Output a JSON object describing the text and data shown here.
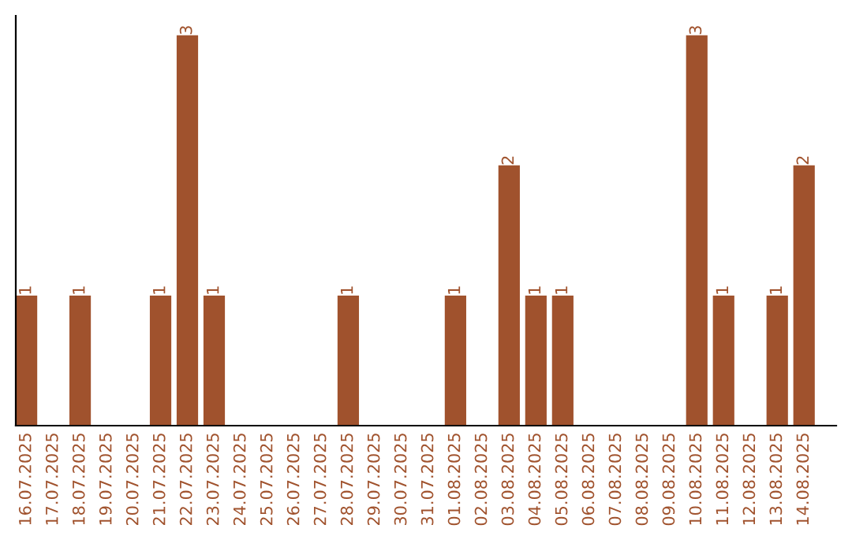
{
  "chart_data": {
    "type": "bar",
    "categories": [
      "16.07.2025",
      "17.07.2025",
      "18.07.2025",
      "19.07.2025",
      "20.07.2025",
      "21.07.2025",
      "22.07.2025",
      "23.07.2025",
      "24.07.2025",
      "25.07.2025",
      "26.07.2025",
      "27.07.2025",
      "28.07.2025",
      "29.07.2025",
      "30.07.2025",
      "31.07.2025",
      "01.08.2025",
      "02.08.2025",
      "03.08.2025",
      "04.08.2025",
      "05.08.2025",
      "06.08.2025",
      "07.08.2025",
      "08.08.2025",
      "09.08.2025",
      "10.08.2025",
      "11.08.2025",
      "12.08.2025",
      "13.08.2025",
      "14.08.2025"
    ],
    "values": [
      1,
      0,
      1,
      0,
      0,
      1,
      3,
      1,
      0,
      0,
      0,
      0,
      1,
      0,
      0,
      0,
      1,
      0,
      2,
      1,
      1,
      0,
      0,
      0,
      0,
      3,
      1,
      0,
      1,
      2
    ],
    "value_labels": [
      "1",
      null,
      "1",
      null,
      null,
      "1",
      "3",
      "1",
      null,
      null,
      null,
      null,
      "1",
      null,
      null,
      null,
      "1",
      null,
      "2",
      "1",
      "1",
      null,
      null,
      null,
      null,
      "3",
      "1",
      null,
      "1",
      "2"
    ],
    "color": "#a0522d",
    "tick_labels": "x",
    "grid": false,
    "legend": false
  }
}
